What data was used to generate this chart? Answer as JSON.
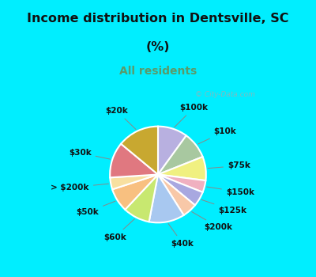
{
  "title_line1": "Income distribution in Dentsville, SC",
  "title_line2": "(%)",
  "subtitle": "All residents",
  "title_color": "#111111",
  "subtitle_color": "#5a9a6a",
  "bg_cyan": "#00eeff",
  "labels": [
    "$100k",
    "$10k",
    "$75k",
    "$150k",
    "$125k",
    "$200k",
    "$40k",
    "$60k",
    "$50k",
    "> $200k",
    "$30k",
    "$20k"
  ],
  "values": [
    10,
    9,
    8,
    4,
    5,
    5,
    12,
    9,
    8,
    4,
    12,
    14
  ],
  "colors": [
    "#b8b0e0",
    "#a8c8a0",
    "#f0f080",
    "#f0b0c0",
    "#a8a8e0",
    "#f8c8a8",
    "#a8c8f0",
    "#c8e870",
    "#f8c080",
    "#f8e0a0",
    "#e07880",
    "#c8a830"
  ],
  "label_fontsize": 7.5,
  "watermark": "City-Data.com"
}
